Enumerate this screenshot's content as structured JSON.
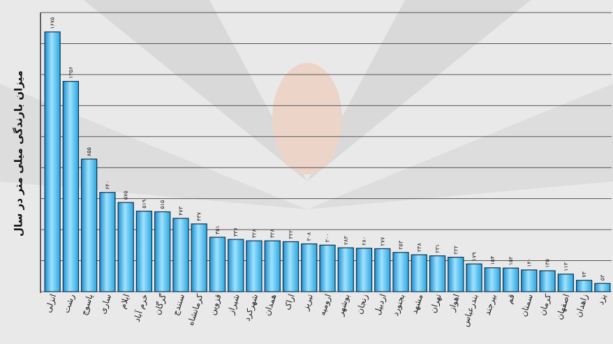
{
  "chart_data": {
    "type": "bar",
    "y_label": "میزان بارندگی میلی متر در سال",
    "categories": [
      "انزلی",
      "رشت",
      "یاسوج",
      "ساری",
      "ایلام",
      "خرم آباد",
      "گرگان",
      "سنندج",
      "کرمانشاه",
      "قزوین",
      "شیراز",
      "شهرکرد",
      "همدان",
      "اراک",
      "تبریز",
      "ارومیه",
      "بوشهر",
      "زنجان",
      "اردبیل",
      "بجنورد",
      "مشهد",
      "تهران",
      "اهواز",
      "بندرعباس",
      "بیرجند",
      "قم",
      "سمنان",
      "کرمان",
      "اصفهان",
      "زاهدان",
      "یزد"
    ],
    "values": [
      1675,
      1356,
      855,
      640,
      575,
      519,
      515,
      473,
      437,
      351,
      337,
      328,
      328,
      322,
      308,
      300,
      283,
      280,
      277,
      253,
      238,
      231,
      222,
      179,
      154,
      152,
      140,
      135,
      113,
      73,
      53
    ],
    "value_labels": [
      "۱۶۷۵",
      "۱۳۵۶",
      "۸۵۵",
      "۶۴۰",
      "۵۷۵",
      "۵۱۹",
      "۵۱۵",
      "۴۷۳",
      "۴۳۷",
      "۳۵۱",
      "۳۳۷",
      "۳۲۸",
      "۳۲۸",
      "۳۲۲",
      "۳۰۸",
      "۳۰۰",
      "۲۸۳",
      "۲۸۰",
      "۲۷۷",
      "۲۵۳",
      "۲۳۸",
      "۲۳۱",
      "۲۲۲",
      "۱۷۹",
      "۱۵۴",
      "۱۵۲",
      "۱۴۰",
      "۱۳۵",
      "۱۱۳",
      "۷۳",
      "۵۳"
    ],
    "color": "#3fb6ea",
    "ylim": [
      0,
      1800
    ],
    "yticks": [
      0,
      200,
      400,
      600,
      800,
      1000,
      1200,
      1400,
      1600,
      1800
    ],
    "grid": true
  }
}
